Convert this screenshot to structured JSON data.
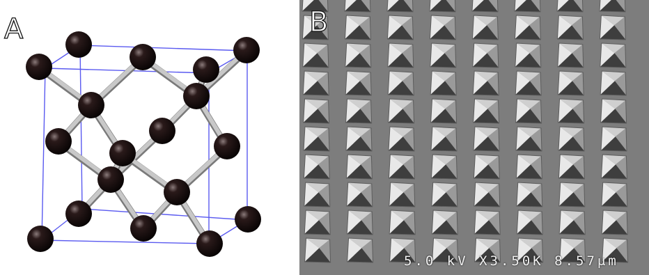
{
  "figure": {
    "panel_a_label": "A",
    "panel_b_label": "B",
    "sem_info": "5.0 kV X3.50K 8.57μm"
  },
  "colors": {
    "cube_edge": "#5a5af0",
    "atom": "#1a0d0d",
    "bond": "#c8c8c8",
    "sem_background": "#7d7d7d"
  }
}
